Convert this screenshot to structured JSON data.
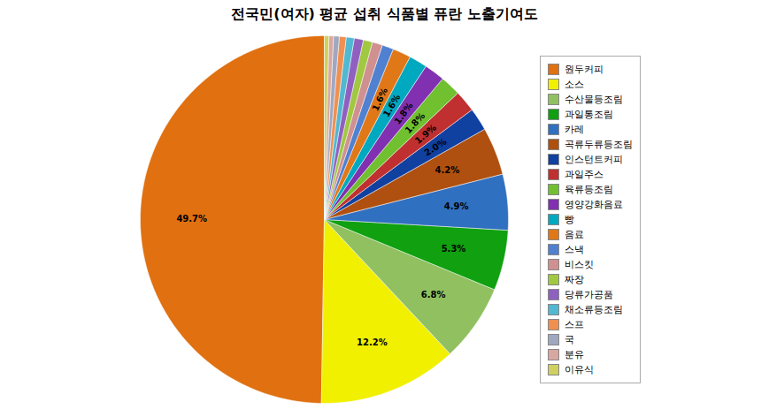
{
  "chart_data": {
    "type": "pie",
    "title": "전국민(여자) 평균 섭취 식품별 퓨란 노출기여도",
    "categories": [
      "원두커피",
      "소스",
      "수산물등조림",
      "과일통조림",
      "카레",
      "곡류두류등조림",
      "인스턴트커피",
      "과일주스",
      "육류등조림",
      "영양강화음료",
      "빵",
      "음료",
      "스낵",
      "비스킷",
      "짜장",
      "당류가공품",
      "채소류등조림",
      "스프",
      "국",
      "분유",
      "이유식"
    ],
    "values": [
      49.7,
      12.2,
      6.8,
      5.3,
      4.9,
      4.2,
      2.0,
      1.9,
      1.8,
      1.8,
      1.6,
      1.6,
      1.0,
      0.9,
      0.8,
      0.8,
      0.7,
      0.6,
      0.5,
      0.4,
      0.4
    ],
    "value_labels": [
      "49.7%",
      "12.2%",
      "6.8%",
      "5.3%",
      "4.9%",
      "4.2%",
      "2.0%",
      "1.9%",
      "1.8%",
      "1.8%",
      "1.6%",
      "1.6%",
      null,
      null,
      null,
      null,
      null,
      null,
      null,
      null,
      null
    ],
    "colors": [
      "#E07010",
      "#F0F000",
      "#90C060",
      "#10A010",
      "#3070C0",
      "#B05010",
      "#1040A0",
      "#C03030",
      "#70C030",
      "#8030B0",
      "#00A8C0",
      "#E07818",
      "#5080D0",
      "#D09090",
      "#A0C840",
      "#9060C0",
      "#50B8D0",
      "#F09050",
      "#A0A8C0",
      "#D8A8A0",
      "#D0D060"
    ],
    "data_labels": true,
    "legend": "right"
  }
}
